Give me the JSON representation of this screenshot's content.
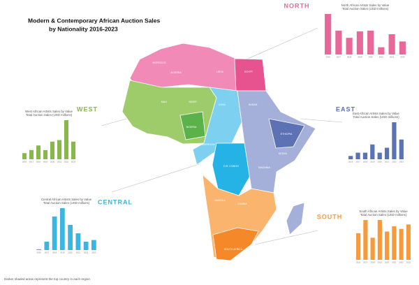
{
  "title_lines": [
    "Modern & Contemporary African Auction Sales",
    "by Nationality 2016-2023"
  ],
  "note": "Darker shaded areas represent the top country in each region",
  "map": {
    "labels": [
      "MOROCCO",
      "ALGERIA",
      "LIBYA",
      "EGYPT",
      "MALI",
      "NIGER",
      "CHAD",
      "SUDAN",
      "NIGERIA",
      "CAMEROON",
      "ETHIOPIA",
      "KENYA",
      "TANZANIA",
      "GABON",
      "D.R. CONGO",
      "ANGOLA",
      "ZAMBIA",
      "SOUTH AFRICA"
    ]
  },
  "chart_data": [
    {
      "type": "bar",
      "region": "NORTH",
      "title": "North African Artists Sales by Value",
      "subtitle": "Total Auction Sales (USD millions)",
      "color": "#e8689a",
      "categories": [
        "2016",
        "2017",
        "2018",
        "2019",
        "2020",
        "2021",
        "2022",
        "2023"
      ],
      "values": [
        56,
        33,
        23,
        32,
        33,
        10,
        28,
        18
      ]
    },
    {
      "type": "bar",
      "region": "WEST",
      "title": "West African Artists Sales by Value",
      "subtitle": "Total Auction Sales (USD millions)",
      "color": "#86b84a",
      "categories": [
        "2016",
        "2017",
        "2018",
        "2019",
        "2020",
        "2021",
        "2022",
        "2023"
      ],
      "values": [
        8,
        12,
        18,
        12,
        23,
        25,
        51,
        23
      ]
    },
    {
      "type": "bar",
      "region": "EAST",
      "title": "East African Artists Sales by Value",
      "subtitle": "Total Auction Sales (USD millions)",
      "color": "#5a73b3",
      "categories": [
        "2016",
        "2017",
        "2018",
        "2019",
        "2020",
        "2021",
        "2022",
        "2023"
      ],
      "values": [
        4,
        8,
        8,
        18,
        8,
        14,
        45,
        24
      ]
    },
    {
      "type": "bar",
      "region": "CENTRAL",
      "title": "Central African Artists Sales by Value",
      "subtitle": "Total Auction Sales (USD millions)",
      "color": "#3ab6e0",
      "categories": [
        "2016",
        "2017",
        "2018",
        "2019",
        "2020",
        "2021",
        "2022",
        "2023"
      ],
      "values": [
        1,
        10,
        40,
        50,
        30,
        20,
        10,
        12
      ]
    },
    {
      "type": "bar",
      "region": "SOUTH",
      "title": "South African Artists Sales by Value",
      "subtitle": "Total Auction Sales (USD millions)",
      "color": "#f79a3c",
      "categories": [
        "2016",
        "2017",
        "2018",
        "2019",
        "2020",
        "2021",
        "2022",
        "2023"
      ],
      "values": [
        30,
        45,
        25,
        45,
        32,
        38,
        35,
        40
      ]
    }
  ]
}
